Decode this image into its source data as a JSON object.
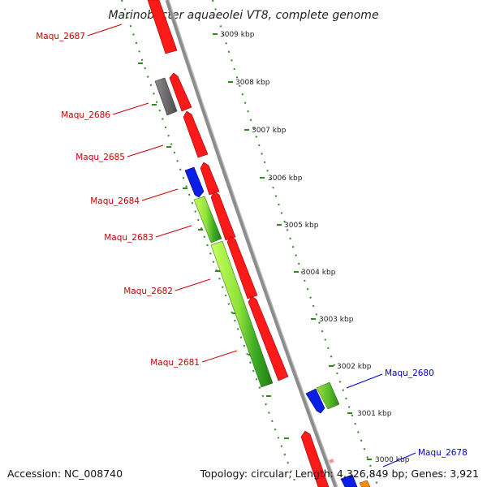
{
  "title": "Marinobacter aquaeolei VT8, complete genome",
  "footer": {
    "accession": "Accession: NC_008740",
    "summary": "Topology: circular; Length: 4,326,849 bp; Genes: 3,921"
  },
  "colors": {
    "backbone": "#8c8c8c",
    "tick": "#2e8b1e",
    "label_red": "#cc0000",
    "label_blue": "#0000cc",
    "gene_red": "#ff0000",
    "gene_gray": "#6e6e6e",
    "gene_blue": "#0a1fe6",
    "gene_orange": "#ff8c00",
    "gene_pink": "#ff9999",
    "gene_green": "#2f9e20",
    "gene_lightgreen": "#a8f04a"
  },
  "ticks": [
    {
      "label": "3009 kbp"
    },
    {
      "label": "3008 kbp"
    },
    {
      "label": "3007 kbp"
    },
    {
      "label": "3006 kbp"
    },
    {
      "label": "3005 kbp"
    },
    {
      "label": "3004 kbp"
    },
    {
      "label": "3003 kbp"
    },
    {
      "label": "3002 kbp"
    },
    {
      "label": "3001 kbp"
    },
    {
      "label": "3000 kbp"
    }
  ],
  "gene_labels": [
    {
      "id": "Maqu_2687",
      "color": "red"
    },
    {
      "id": "Maqu_2686",
      "color": "red"
    },
    {
      "id": "Maqu_2685",
      "color": "red"
    },
    {
      "id": "Maqu_2684",
      "color": "red"
    },
    {
      "id": "Maqu_2683",
      "color": "red"
    },
    {
      "id": "Maqu_2682",
      "color": "red"
    },
    {
      "id": "Maqu_2681",
      "color": "red"
    },
    {
      "id": "Maqu_2680",
      "color": "blue"
    },
    {
      "id": "Maqu_2678",
      "color": "blue"
    }
  ]
}
